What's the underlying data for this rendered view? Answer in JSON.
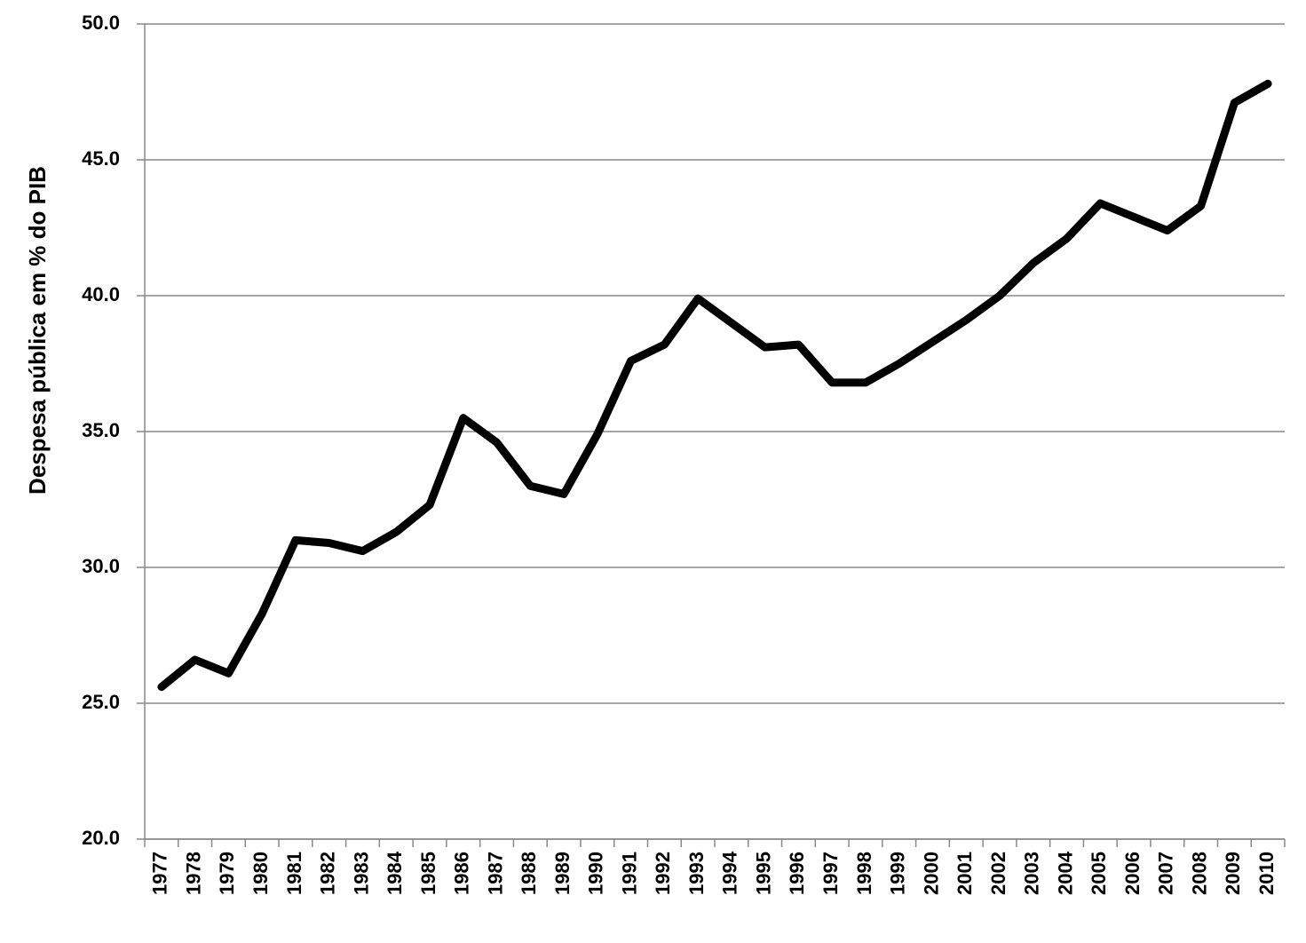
{
  "chart_data": {
    "type": "line",
    "y_label": "Despesa pública em % do PIB",
    "categories": [
      "1977",
      "1978",
      "1979",
      "1980",
      "1981",
      "1982",
      "1983",
      "1984",
      "1985",
      "1986",
      "1987",
      "1988",
      "1989",
      "1990",
      "1991",
      "1992",
      "1993",
      "1994",
      "1995",
      "1996",
      "1997",
      "1998",
      "1999",
      "2000",
      "2001",
      "2002",
      "2003",
      "2004",
      "2005",
      "2006",
      "2007",
      "2008",
      "2009",
      "2010"
    ],
    "values": [
      25.6,
      26.6,
      26.1,
      28.3,
      31.0,
      30.9,
      30.6,
      31.3,
      32.3,
      35.5,
      34.6,
      33.0,
      32.7,
      34.9,
      37.6,
      38.2,
      39.9,
      39.0,
      38.1,
      38.2,
      36.8,
      36.8,
      37.5,
      38.3,
      39.1,
      40.0,
      41.2,
      42.1,
      43.4,
      42.9,
      42.4,
      43.3,
      47.1,
      47.8
    ],
    "color": "#000000",
    "ylim": [
      20,
      50
    ],
    "yticks": [
      {
        "value": 20,
        "label": "20.0"
      },
      {
        "value": 25,
        "label": "25.0"
      },
      {
        "value": 30,
        "label": "30.0"
      },
      {
        "value": 35,
        "label": "35.0"
      },
      {
        "value": 40,
        "label": "40.0"
      },
      {
        "value": 45,
        "label": "45.0"
      },
      {
        "value": 50,
        "label": "50.0"
      }
    ],
    "grid": true
  }
}
